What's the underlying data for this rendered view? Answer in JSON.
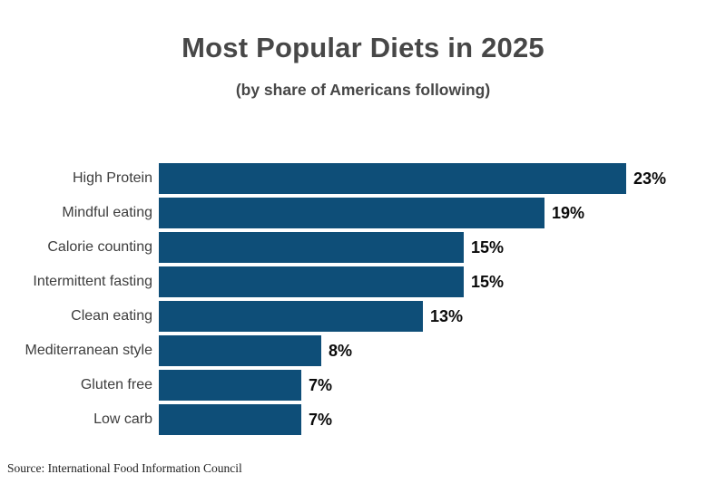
{
  "header": {
    "title": "Most Popular Diets in 2025",
    "subtitle": "(by share of Americans following)"
  },
  "footer": {
    "source": "Source: International Food Information Council"
  },
  "colors": {
    "bar": "#0e4e78",
    "title_text": "#474747",
    "category_text": "#3d3d3d",
    "value_text": "#0a0a0a",
    "background": "#ffffff"
  },
  "chart_data": {
    "type": "bar",
    "orientation": "horizontal",
    "title": "Most Popular Diets in 2025",
    "subtitle": "(by share of Americans following)",
    "categories": [
      "High Protein",
      "Mindful eating",
      "Calorie counting",
      "Intermittent fasting",
      "Clean eating",
      "Mediterranean style",
      "Gluten free",
      "Low carb"
    ],
    "values": [
      23,
      19,
      15,
      15,
      13,
      8,
      7,
      7
    ],
    "value_labels": [
      "23%",
      "19%",
      "15%",
      "15%",
      "13%",
      "8%",
      "7%",
      "7%"
    ],
    "unit": "percent",
    "xlabel": "",
    "ylabel": "",
    "xlim": [
      0,
      23
    ],
    "grid": false,
    "legend": false,
    "bar_color": "#0e4e78",
    "source": "Source: International Food Information Council"
  }
}
